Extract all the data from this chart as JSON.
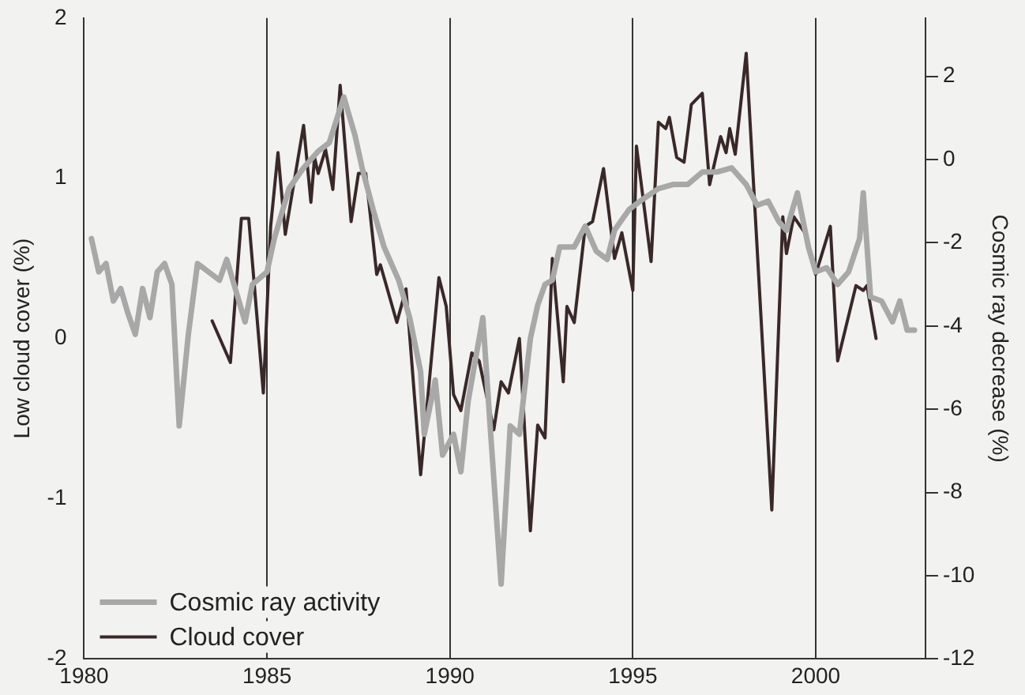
{
  "chart_data": {
    "type": "line",
    "ylabel": "Low cloud cover (%)",
    "y2label": "Cosmic ray decrease (%)",
    "xlim": [
      1980,
      2003
    ],
    "xticks": [
      1980,
      1985,
      1990,
      1995,
      2000
    ],
    "ylim": [
      -2,
      2
    ],
    "yticks": [
      -2,
      -1,
      0,
      1,
      2
    ],
    "y2lim": [
      -12,
      3.4
    ],
    "y2ticks": [
      -12,
      -10,
      -8,
      -6,
      -4,
      -2,
      0,
      2
    ],
    "grid": "x",
    "legend": "bottom left",
    "marker": "none",
    "line_style": "solid",
    "series": [
      {
        "name": "Cosmic ray activity",
        "color": "#a8a8a8",
        "axis": "y2",
        "x": [
          1980.2,
          1980.4,
          1980.6,
          1980.8,
          1981.0,
          1981.2,
          1981.4,
          1981.6,
          1981.8,
          1982.0,
          1982.2,
          1982.4,
          1982.6,
          1982.85,
          1983.1,
          1983.4,
          1983.7,
          1983.9,
          1984.2,
          1984.4,
          1984.6,
          1985.0,
          1985.2,
          1985.6,
          1986.0,
          1986.4,
          1986.7,
          1987.1,
          1987.4,
          1987.6,
          1987.9,
          1988.2,
          1988.6,
          1988.9,
          1989.2,
          1989.3,
          1989.6,
          1989.8,
          1990.1,
          1990.3,
          1990.5,
          1990.9,
          1991.1,
          1991.4,
          1991.65,
          1991.9,
          1992.2,
          1992.4,
          1992.6,
          1992.8,
          1993.0,
          1993.4,
          1993.7,
          1994.0,
          1994.3,
          1994.5,
          1994.9,
          1995.2,
          1995.7,
          1996.1,
          1996.5,
          1996.9,
          1997.3,
          1997.7,
          1998.1,
          1998.4,
          1998.7,
          1999.0,
          1999.2,
          1999.5,
          1999.8,
          2000.0,
          2000.3,
          2000.6,
          2000.9,
          2001.2,
          2001.3,
          2001.5,
          2001.8,
          2002.1,
          2002.3,
          2002.5,
          2002.7
        ],
        "values": [
          -1.9,
          -2.7,
          -2.5,
          -3.4,
          -3.1,
          -3.7,
          -4.2,
          -3.1,
          -3.8,
          -2.7,
          -2.5,
          -3.0,
          -6.4,
          -4.2,
          -2.5,
          -2.7,
          -2.9,
          -2.4,
          -3.3,
          -3.9,
          -3.0,
          -2.7,
          -1.9,
          -0.7,
          -0.2,
          0.2,
          0.4,
          1.5,
          0.6,
          -0.2,
          -1.2,
          -2.1,
          -2.9,
          -3.8,
          -5.1,
          -6.6,
          -5.3,
          -7.1,
          -6.6,
          -7.5,
          -5.8,
          -3.8,
          -6.4,
          -10.2,
          -6.4,
          -6.6,
          -4.3,
          -3.5,
          -3.0,
          -2.9,
          -2.1,
          -2.1,
          -1.6,
          -2.2,
          -2.4,
          -1.7,
          -1.2,
          -1.0,
          -0.7,
          -0.6,
          -0.6,
          -0.3,
          -0.3,
          -0.2,
          -0.6,
          -1.1,
          -1.0,
          -1.5,
          -1.7,
          -0.8,
          -2.1,
          -2.7,
          -2.6,
          -3.0,
          -2.7,
          -1.9,
          -0.8,
          -3.3,
          -3.4,
          -3.9,
          -3.4,
          -4.1,
          -4.1
        ]
      },
      {
        "name": "Cloud cover",
        "color": "#3a2828",
        "axis": "y",
        "x": [
          1983.5,
          1984.0,
          1984.3,
          1984.5,
          1984.9,
          1985.1,
          1985.3,
          1985.5,
          1986.0,
          1986.2,
          1986.3,
          1986.4,
          1986.6,
          1986.8,
          1987.0,
          1987.3,
          1987.5,
          1987.7,
          1988.0,
          1988.1,
          1988.55,
          1988.8,
          1989.2,
          1989.7,
          1989.9,
          1990.1,
          1990.3,
          1990.6,
          1990.8,
          1991.2,
          1991.4,
          1991.6,
          1991.9,
          1992.2,
          1992.4,
          1992.6,
          1992.8,
          1993.1,
          1993.2,
          1993.4,
          1993.7,
          1993.9,
          1994.2,
          1994.5,
          1994.7,
          1995.0,
          1995.1,
          1995.5,
          1995.7,
          1995.9,
          1996.0,
          1996.2,
          1996.4,
          1996.6,
          1996.9,
          1997.1,
          1997.4,
          1997.55,
          1997.65,
          1997.8,
          1998.1,
          1998.8,
          1999.1,
          1999.2,
          1999.4,
          1999.7,
          2000.0,
          2000.4,
          2000.6,
          2001.1,
          2001.3,
          2001.4,
          2001.65
        ],
        "values": [
          0.11,
          -0.15,
          0.75,
          0.75,
          -0.34,
          0.7,
          1.16,
          0.65,
          1.33,
          0.85,
          1.13,
          1.03,
          1.18,
          0.93,
          1.58,
          0.73,
          1.03,
          1.03,
          0.4,
          0.46,
          0.1,
          0.31,
          -0.85,
          0.38,
          0.2,
          -0.35,
          -0.45,
          -0.09,
          -0.14,
          -0.57,
          -0.27,
          -0.34,
          0.0,
          -1.2,
          -0.54,
          -0.62,
          0.5,
          -0.27,
          0.2,
          0.1,
          0.7,
          0.73,
          1.06,
          0.5,
          0.66,
          0.3,
          1.2,
          0.48,
          1.35,
          1.31,
          1.38,
          1.13,
          1.1,
          1.46,
          1.53,
          0.96,
          1.26,
          1.16,
          1.31,
          1.15,
          1.78,
          -1.07,
          0.76,
          0.53,
          0.76,
          0.66,
          0.4,
          0.7,
          -0.14,
          0.33,
          0.3,
          0.33,
          0.0
        ]
      }
    ]
  }
}
